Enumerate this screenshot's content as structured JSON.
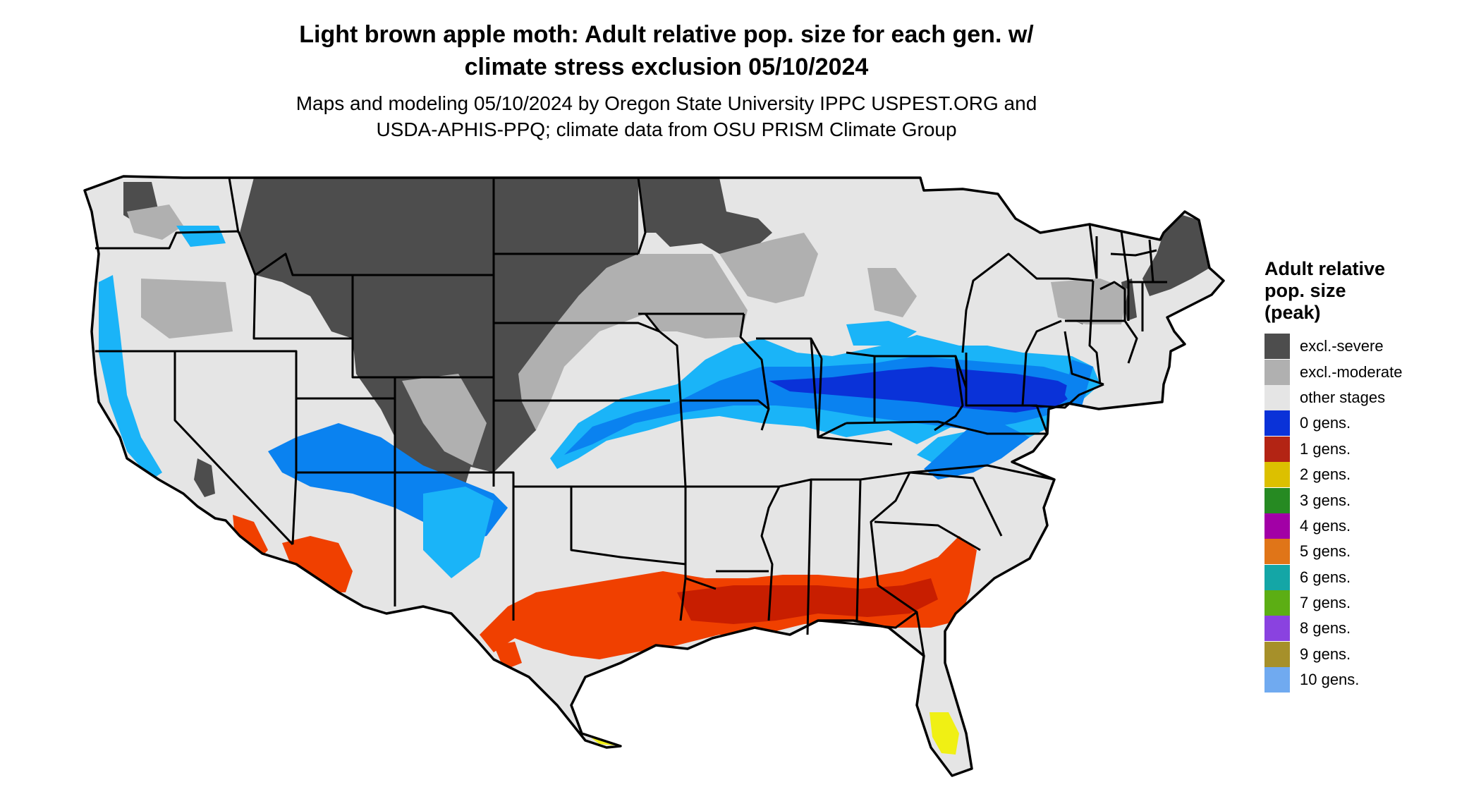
{
  "title": {
    "line1": "Light brown apple moth: Adult relative pop. size for each gen. w/",
    "line2": "climate stress exclusion 05/10/2024"
  },
  "subtitle": {
    "line1": "Maps and modeling 05/10/2024 by Oregon State University IPPC USPEST.ORG and",
    "line2": "USDA-APHIS-PPQ; climate data from OSU PRISM Climate Group"
  },
  "legend": {
    "title_line1": "Adult relative",
    "title_line2": "pop. size",
    "title_line3": "(peak)",
    "items": [
      {
        "label": "excl.-severe",
        "color": "#4d4d4d"
      },
      {
        "label": "excl.-moderate",
        "color": "#b0b0b0"
      },
      {
        "label": "other stages",
        "color": "#e5e5e5"
      },
      {
        "label": "0 gens.",
        "color": "#0a32d8"
      },
      {
        "label": "1 gens.",
        "color": "#b32414"
      },
      {
        "label": "2 gens.",
        "color": "#dcc000"
      },
      {
        "label": "3 gens.",
        "color": "#268a22"
      },
      {
        "label": "4 gens.",
        "color": "#a200a6"
      },
      {
        "label": "5 gens.",
        "color": "#e07518"
      },
      {
        "label": "6 gens.",
        "color": "#14a6a6"
      },
      {
        "label": "7 gens.",
        "color": "#5cae14"
      },
      {
        "label": "8 gens.",
        "color": "#8a42e0"
      },
      {
        "label": "9 gens.",
        "color": "#a6902a"
      },
      {
        "label": "10 gens.",
        "color": "#70aaf0"
      }
    ]
  },
  "map_colors": {
    "base": "#e5e5e5",
    "severe": "#4d4d4d",
    "moderate": "#b0b0b0",
    "blue_dark": "#0a32d8",
    "blue_mid": "#0a82f0",
    "blue_light": "#1ab4f8",
    "red_dark": "#c81e00",
    "red": "#f04000",
    "yellow": "#f0f014",
    "border": "#000000"
  }
}
